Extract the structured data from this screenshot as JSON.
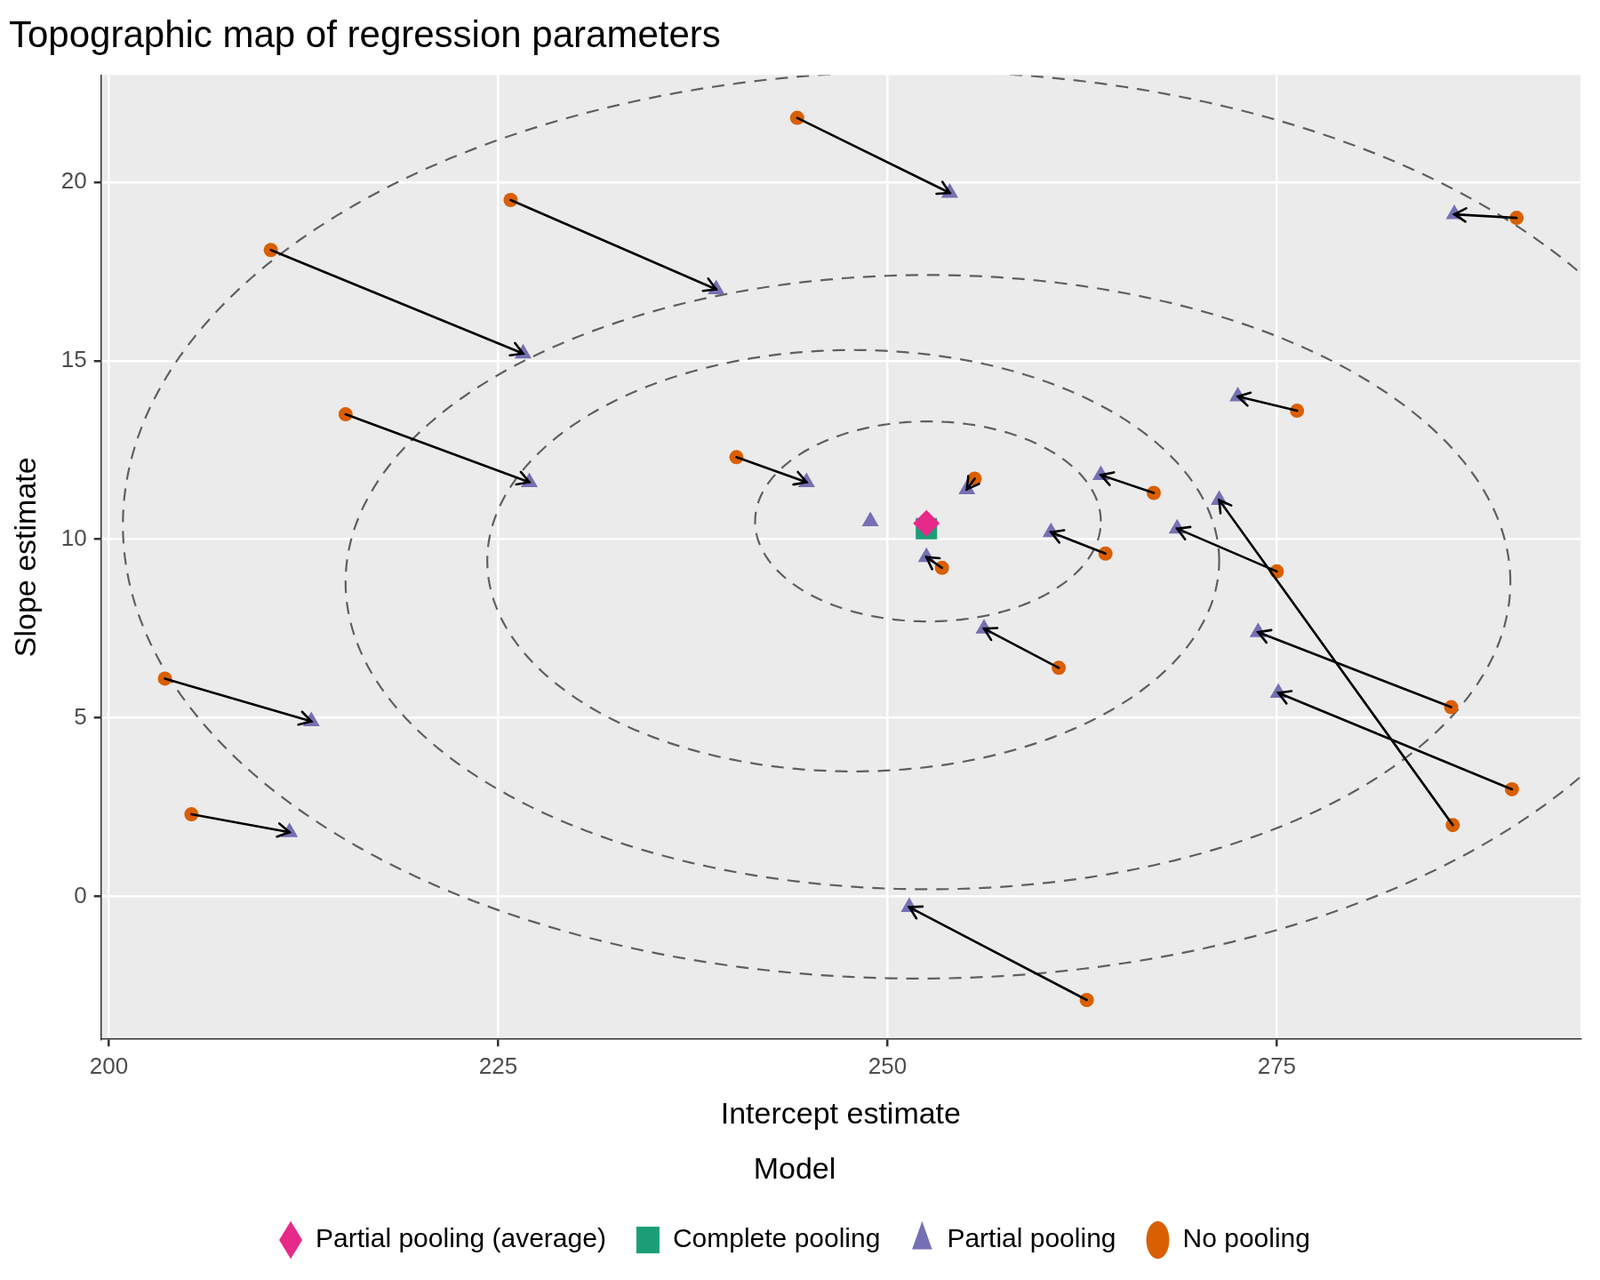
{
  "chart_data": {
    "type": "scatter",
    "title": "Topographic map of regression parameters",
    "x_label": "Intercept estimate",
    "y_label": "Slope estimate",
    "legend_title": "Model",
    "legend": "bottom",
    "grid": true,
    "xlim": [
      199.5,
      294.5
    ],
    "xticks": [
      200,
      225,
      250,
      275
    ],
    "ylim": [
      -4,
      23
    ],
    "yticks": [
      0,
      5,
      10,
      15,
      20
    ],
    "series": [
      {
        "name": "Complete pooling",
        "color": "#1b9e77",
        "marker": "square",
        "x": [
          252.5
        ],
        "y": [
          10.3
        ]
      },
      {
        "name": "No pooling",
        "color": "#d95f02",
        "marker": "circle",
        "x": [
          244.2,
          225.8,
          210.4,
          215.2,
          240.3,
          203.6,
          205.3,
          262.8,
          253.5,
          261.0,
          264.0,
          267.1,
          275.0,
          276.3,
          286.3,
          286.2,
          290.1,
          290.4,
          255.6,
          null
        ],
        "y": [
          21.8,
          19.5,
          18.1,
          13.5,
          12.3,
          6.1,
          2.3,
          -2.9,
          9.2,
          6.4,
          9.6,
          11.3,
          9.1,
          13.6,
          2.0,
          5.3,
          3.0,
          19.0,
          11.7,
          null
        ]
      },
      {
        "name": "Partial pooling",
        "color": "#7570b3",
        "marker": "triangle",
        "x": [
          254.0,
          239.0,
          226.6,
          227.0,
          244.8,
          213.0,
          211.6,
          251.4,
          252.5,
          256.2,
          260.5,
          263.7,
          268.6,
          272.5,
          271.3,
          273.8,
          275.1,
          286.4,
          255.1,
          248.9
        ],
        "y": [
          19.7,
          17.0,
          15.2,
          11.6,
          11.6,
          4.9,
          1.8,
          -0.3,
          9.5,
          7.5,
          10.2,
          11.8,
          10.3,
          14.0,
          11.1,
          7.4,
          5.7,
          19.1,
          11.4,
          10.5
        ]
      },
      {
        "name": "Partial pooling (average)",
        "color": "#e7298a",
        "marker": "diamond",
        "x": [
          252.5
        ],
        "y": [
          10.45
        ]
      }
    ],
    "contours": {
      "line_style": "dashed",
      "color": "#5f5f5f",
      "ellipses": [
        {
          "center": [
            252.6,
            10.5
          ],
          "x_radius": 11.1,
          "y_radius": 2.8
        },
        {
          "center": [
            247.8,
            9.4
          ],
          "x_radius": 23.5,
          "y_radius": 5.9
        },
        {
          "center": [
            252.6,
            8.8
          ],
          "x_radius": 37.4,
          "y_radius": 8.6
        },
        {
          "center": [
            252.0,
            10.4
          ],
          "x_radius": 51.1,
          "y_radius": 12.7
        }
      ]
    }
  }
}
